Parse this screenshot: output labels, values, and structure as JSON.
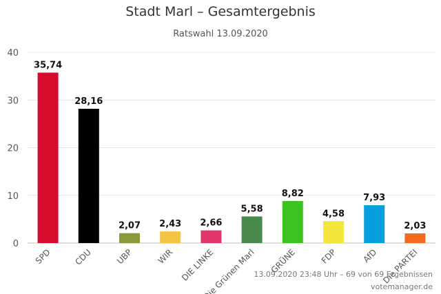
{
  "chart_data": {
    "type": "bar",
    "title": "Stadt Marl – Gesamtergebnis",
    "subtitle": "Ratswahl 13.09.2020",
    "categories": [
      "SPD",
      "CDU",
      "UBP",
      "WIR",
      "DIE LINKE",
      "Die Grünen Marl",
      "GRÜNE",
      "FDP",
      "AfD",
      "Die PARTEI"
    ],
    "values": [
      35.74,
      28.16,
      2.07,
      2.43,
      2.66,
      5.58,
      8.82,
      4.58,
      7.93,
      2.03
    ],
    "value_labels": [
      "35,74",
      "28,16",
      "2,07",
      "2,43",
      "2,66",
      "5,58",
      "8,82",
      "4,58",
      "7,93",
      "2,03"
    ],
    "colors": [
      "#d50c2d",
      "#000000",
      "#8a9a3b",
      "#f5c342",
      "#e2356b",
      "#478a4c",
      "#3ec21f",
      "#f2e63c",
      "#079ee0",
      "#f26b1d"
    ],
    "yticks": [
      0,
      10,
      20,
      30,
      40
    ],
    "ylim": [
      0,
      40
    ],
    "xlabel": "",
    "ylabel": "",
    "grid": true,
    "legend": "none"
  },
  "footer": {
    "credit": "13.09.2020 23:48 Uhr – 69 von 69 Ergebnissen",
    "source": "votemanager.de"
  }
}
